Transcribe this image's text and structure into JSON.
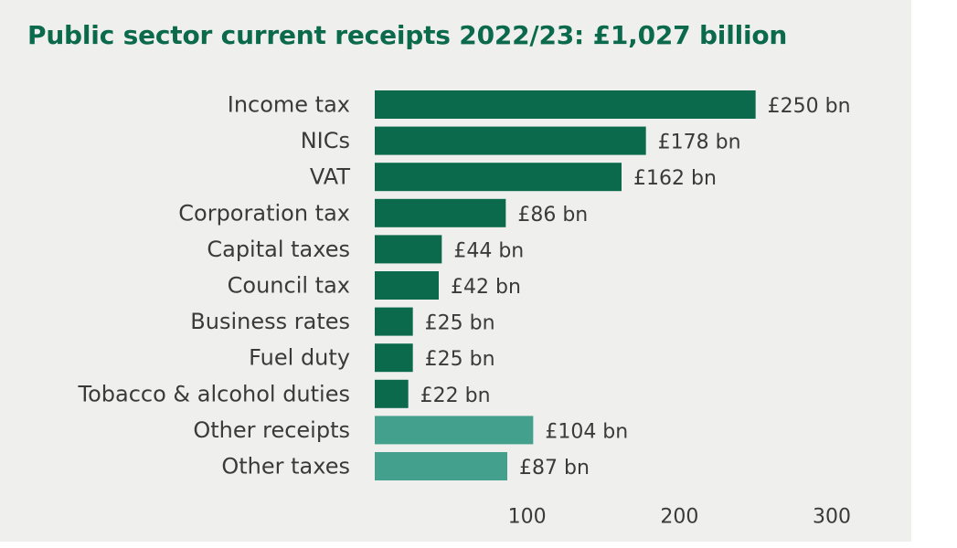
{
  "chart_data": {
    "type": "bar",
    "orientation": "horizontal",
    "title": "Public sector current receipts 2022/23: £1,027 billion",
    "categories": [
      "Income tax",
      "NICs",
      "VAT",
      "Corporation tax",
      "Capital taxes",
      "Council tax",
      "Business rates",
      "Fuel duty",
      "Tobacco & alcohol duties",
      "Other receipts",
      "Other taxes"
    ],
    "values": [
      250,
      178,
      162,
      86,
      44,
      42,
      25,
      25,
      22,
      104,
      87
    ],
    "value_labels": [
      "£250 bn",
      "£178 bn",
      "£162 bn",
      "£86 bn",
      "£44 bn",
      "£42 bn",
      "£25 bn",
      "£25 bn",
      "£22 bn",
      "£104 bn",
      "£87 bn"
    ],
    "bar_colors": [
      "#0b6a4c",
      "#0b6a4c",
      "#0b6a4c",
      "#0b6a4c",
      "#0b6a4c",
      "#0b6a4c",
      "#0b6a4c",
      "#0b6a4c",
      "#0b6a4c",
      "#43a08c",
      "#43a08c"
    ],
    "xlim": [
      0,
      300
    ],
    "x_ticks": [
      100,
      200,
      300
    ],
    "grid": false,
    "legend": "none"
  }
}
